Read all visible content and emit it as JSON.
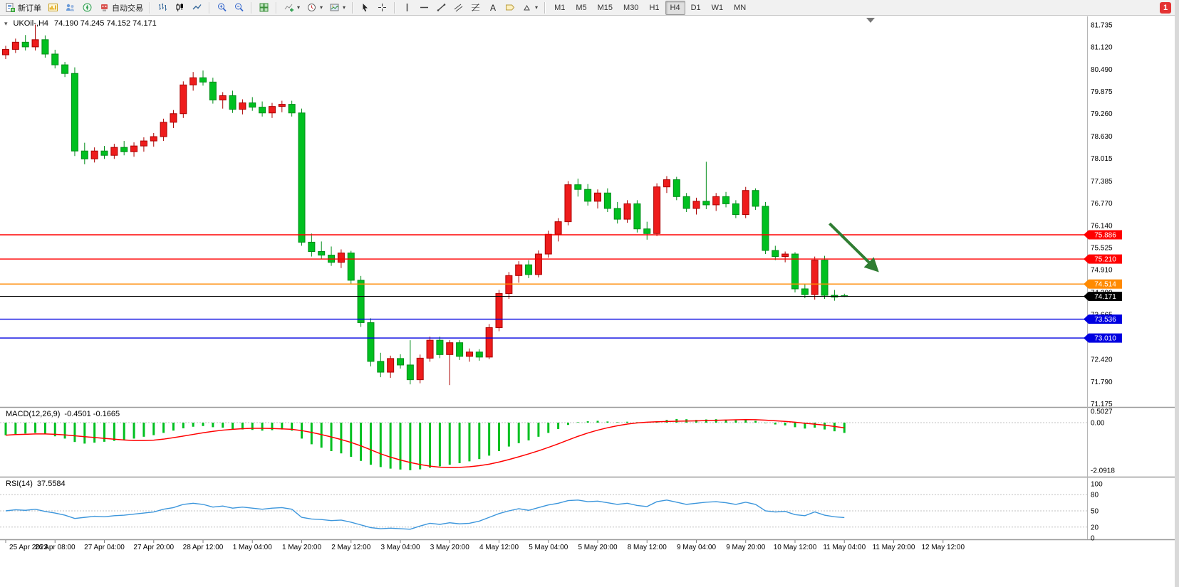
{
  "window": {
    "toolbar": {
      "new_order_label": "新订单",
      "autotrading_label": "自动交易",
      "timeframes": [
        "M1",
        "M5",
        "M15",
        "M30",
        "H1",
        "H4",
        "D1",
        "W1",
        "MN"
      ],
      "active_timeframe": "H4",
      "notification_badge": "1"
    }
  },
  "chart_header": {
    "symbol_period": "UKOil-,H4",
    "ohlc": "74.190 74.245 74.152 74.171"
  },
  "chart_data": {
    "type": "candlestick",
    "symbol": "UKOil-",
    "period": "H4",
    "ohlc_current": {
      "open": "74.190",
      "high": "74.245",
      "low": "74.152",
      "close": "74.171"
    },
    "price_axis_labels": [
      "81.735",
      "81.120",
      "80.490",
      "79.875",
      "79.260",
      "78.630",
      "78.015",
      "77.385",
      "76.770",
      "76.140",
      "75.525",
      "74.910",
      "74.280",
      "73.665",
      "73.050",
      "72.420",
      "71.790",
      "71.175"
    ],
    "time_labels": [
      "25 Apr 2023",
      "26 Apr 08:00",
      "27 Apr 04:00",
      "27 Apr 20:00",
      "28 Apr 12:00",
      "1 May 04:00",
      "1 May 20:00",
      "2 May 12:00",
      "3 May 04:00",
      "3 May 20:00",
      "4 May 12:00",
      "5 May 04:00",
      "5 May 20:00",
      "8 May 12:00",
      "9 May 04:00",
      "9 May 20:00",
      "10 May 12:00",
      "11 May 04:00",
      "11 May 20:00",
      "12 May 12:00"
    ],
    "candles": [
      [
        80.9,
        81.15,
        80.78,
        81.05
      ],
      [
        81.05,
        81.35,
        80.95,
        81.25
      ],
      [
        81.25,
        81.45,
        81.02,
        81.12
      ],
      [
        81.12,
        81.74,
        81.02,
        81.32
      ],
      [
        81.32,
        81.44,
        80.82,
        80.92
      ],
      [
        80.92,
        81.04,
        80.52,
        80.62
      ],
      [
        80.62,
        80.7,
        80.28,
        80.38
      ],
      [
        80.38,
        80.55,
        78.08,
        78.22
      ],
      [
        78.22,
        78.45,
        77.85,
        78.0
      ],
      [
        78.0,
        78.32,
        77.9,
        78.22
      ],
      [
        78.22,
        78.36,
        78.0,
        78.1
      ],
      [
        78.1,
        78.42,
        78.0,
        78.32
      ],
      [
        78.32,
        78.5,
        78.1,
        78.2
      ],
      [
        78.2,
        78.46,
        78.06,
        78.36
      ],
      [
        78.36,
        78.6,
        78.2,
        78.5
      ],
      [
        78.5,
        78.72,
        78.34,
        78.62
      ],
      [
        78.62,
        79.12,
        78.5,
        79.02
      ],
      [
        79.02,
        79.36,
        78.86,
        79.26
      ],
      [
        79.26,
        80.16,
        79.14,
        80.06
      ],
      [
        80.06,
        80.42,
        79.9,
        80.26
      ],
      [
        80.26,
        80.46,
        80.04,
        80.14
      ],
      [
        80.14,
        80.26,
        79.54,
        79.64
      ],
      [
        79.64,
        79.86,
        79.4,
        79.76
      ],
      [
        79.76,
        79.9,
        79.28,
        79.38
      ],
      [
        79.38,
        79.66,
        79.24,
        79.56
      ],
      [
        79.56,
        79.72,
        79.34,
        79.44
      ],
      [
        79.44,
        79.6,
        79.18,
        79.28
      ],
      [
        79.28,
        79.56,
        79.14,
        79.46
      ],
      [
        79.46,
        79.62,
        79.3,
        79.52
      ],
      [
        79.52,
        79.62,
        79.18,
        79.28
      ],
      [
        79.28,
        79.4,
        75.58,
        75.68
      ],
      [
        75.68,
        75.92,
        75.28,
        75.42
      ],
      [
        75.42,
        75.7,
        75.22,
        75.32
      ],
      [
        75.32,
        75.56,
        75.02,
        75.12
      ],
      [
        75.12,
        75.48,
        74.96,
        75.38
      ],
      [
        75.38,
        75.44,
        74.52,
        74.62
      ],
      [
        74.62,
        74.74,
        73.32,
        73.44
      ],
      [
        73.44,
        73.56,
        72.22,
        72.36
      ],
      [
        72.36,
        72.6,
        71.92,
        72.06
      ],
      [
        72.06,
        72.52,
        71.9,
        72.44
      ],
      [
        72.44,
        72.56,
        72.16,
        72.26
      ],
      [
        72.26,
        72.95,
        71.72,
        71.85
      ],
      [
        71.85,
        72.55,
        71.75,
        72.45
      ],
      [
        72.45,
        73.05,
        72.35,
        72.95
      ],
      [
        72.95,
        73.05,
        72.45,
        72.55
      ],
      [
        72.55,
        72.95,
        71.7,
        72.88
      ],
      [
        72.88,
        72.95,
        72.4,
        72.5
      ],
      [
        72.5,
        72.72,
        72.35,
        72.62
      ],
      [
        72.62,
        72.7,
        72.38,
        72.48
      ],
      [
        72.48,
        73.4,
        72.42,
        73.3
      ],
      [
        73.3,
        74.35,
        73.2,
        74.25
      ],
      [
        74.25,
        74.85,
        74.1,
        74.75
      ],
      [
        74.75,
        75.15,
        74.55,
        75.05
      ],
      [
        75.05,
        75.18,
        74.68,
        74.78
      ],
      [
        74.78,
        75.45,
        74.7,
        75.35
      ],
      [
        75.35,
        76.0,
        75.25,
        75.9
      ],
      [
        75.9,
        76.35,
        75.7,
        76.25
      ],
      [
        76.25,
        77.38,
        76.15,
        77.28
      ],
      [
        77.28,
        77.45,
        76.95,
        77.15
      ],
      [
        77.15,
        77.3,
        76.7,
        76.82
      ],
      [
        76.82,
        77.15,
        76.62,
        77.05
      ],
      [
        77.05,
        77.18,
        76.52,
        76.62
      ],
      [
        76.62,
        76.8,
        76.2,
        76.32
      ],
      [
        76.32,
        76.85,
        76.22,
        76.75
      ],
      [
        76.75,
        76.85,
        75.95,
        76.05
      ],
      [
        76.05,
        76.25,
        75.75,
        75.92
      ],
      [
        75.92,
        77.32,
        75.85,
        77.22
      ],
      [
        77.22,
        77.52,
        77.05,
        77.42
      ],
      [
        77.42,
        77.5,
        76.85,
        76.95
      ],
      [
        76.95,
        77.05,
        76.52,
        76.62
      ],
      [
        76.62,
        76.92,
        76.45,
        76.82
      ],
      [
        76.82,
        77.92,
        76.6,
        76.72
      ],
      [
        76.72,
        77.05,
        76.55,
        76.95
      ],
      [
        76.95,
        77.08,
        76.65,
        76.75
      ],
      [
        76.75,
        76.85,
        76.35,
        76.45
      ],
      [
        76.45,
        77.22,
        76.35,
        77.12
      ],
      [
        77.12,
        77.18,
        76.58,
        76.68
      ],
      [
        76.68,
        76.8,
        75.35,
        75.45
      ],
      [
        75.45,
        75.58,
        75.18,
        75.28
      ],
      [
        75.28,
        75.42,
        75.12,
        75.35
      ],
      [
        75.35,
        75.4,
        74.28,
        74.38
      ],
      [
        74.38,
        74.52,
        74.12,
        74.22
      ],
      [
        74.22,
        75.28,
        74.08,
        75.18
      ],
      [
        75.18,
        75.3,
        74.1,
        74.2
      ],
      [
        74.2,
        74.35,
        74.05,
        74.15
      ],
      [
        74.19,
        74.245,
        74.152,
        74.171
      ]
    ],
    "hlines": [
      {
        "price": 75.886,
        "label": "75.886",
        "color": "#ff0000"
      },
      {
        "price": 75.21,
        "label": "75.210",
        "color": "#ff0000"
      },
      {
        "price": 74.514,
        "label": "74.514",
        "color": "#ff8a00"
      },
      {
        "price": 73.536,
        "label": "73.536",
        "color": "#0000e0"
      },
      {
        "price": 73.01,
        "label": "73.010",
        "color": "#0000e0"
      }
    ],
    "current_price": 74.171,
    "current_price_label": "74.171",
    "arrow": {
      "from_bar": 83.5,
      "from_price": 76.2,
      "to_bar": 88.3,
      "to_price": 74.9
    },
    "colors": {
      "up": "#ee1c1c",
      "up_stroke": "#aa0000",
      "down": "#00c020",
      "down_stroke": "#008c18",
      "macd_hist": "#00c020",
      "macd_signal": "#ff0000",
      "rsi": "#3c96dc",
      "arrow": "#2f7d32",
      "current": "#000000"
    },
    "indicators": {
      "macd": {
        "name": "MACD(12,26,9)",
        "values_text": "-0.4501 -0.1665",
        "axis": [
          [
            "0.5027",
            0.5027
          ],
          [
            "0.00",
            0
          ],
          [
            "-2.0918",
            -2.0918
          ]
        ],
        "histogram": [
          -0.55,
          -0.5,
          -0.48,
          -0.45,
          -0.5,
          -0.6,
          -0.7,
          -0.85,
          -0.92,
          -0.88,
          -0.84,
          -0.8,
          -0.76,
          -0.7,
          -0.62,
          -0.55,
          -0.45,
          -0.35,
          -0.25,
          -0.18,
          -0.15,
          -0.2,
          -0.22,
          -0.28,
          -0.3,
          -0.32,
          -0.35,
          -0.33,
          -0.3,
          -0.35,
          -0.7,
          -0.95,
          -1.1,
          -1.25,
          -1.35,
          -1.5,
          -1.68,
          -1.85,
          -1.95,
          -2.02,
          -2.06,
          -2.09,
          -2.05,
          -1.98,
          -1.92,
          -1.85,
          -1.78,
          -1.7,
          -1.6,
          -1.45,
          -1.25,
          -1.05,
          -0.9,
          -0.78,
          -0.62,
          -0.45,
          -0.28,
          -0.1,
          0.02,
          0.06,
          0.08,
          0.05,
          0.02,
          0.04,
          0.02,
          0.0,
          0.06,
          0.12,
          0.16,
          0.15,
          0.12,
          0.14,
          0.15,
          0.13,
          0.1,
          0.12,
          0.08,
          -0.02,
          -0.08,
          -0.12,
          -0.2,
          -0.26,
          -0.22,
          -0.3,
          -0.38,
          -0.4501
        ]
      },
      "rsi": {
        "name": "RSI(14)",
        "value_text": "37.5584",
        "axis": [
          [
            "100",
            100
          ],
          [
            "80",
            80
          ],
          [
            "50",
            50
          ],
          [
            "20",
            20
          ],
          [
            "0",
            0
          ]
        ],
        "levels": [
          80,
          50,
          20
        ],
        "values": [
          50,
          52,
          51,
          53,
          49,
          46,
          42,
          36,
          38,
          40,
          39,
          41,
          42,
          44,
          46,
          48,
          53,
          56,
          62,
          64,
          62,
          57,
          59,
          55,
          57,
          55,
          53,
          55,
          56,
          53,
          38,
          35,
          34,
          32,
          33,
          29,
          24,
          19,
          17,
          18,
          17,
          16,
          22,
          27,
          25,
          28,
          26,
          27,
          31,
          38,
          45,
          50,
          54,
          51,
          56,
          61,
          64,
          69,
          70,
          67,
          68,
          65,
          62,
          64,
          60,
          58,
          67,
          70,
          66,
          62,
          64,
          66,
          67,
          65,
          62,
          66,
          62,
          50,
          48,
          49,
          43,
          41,
          48,
          42,
          39,
          37.56
        ]
      }
    }
  }
}
